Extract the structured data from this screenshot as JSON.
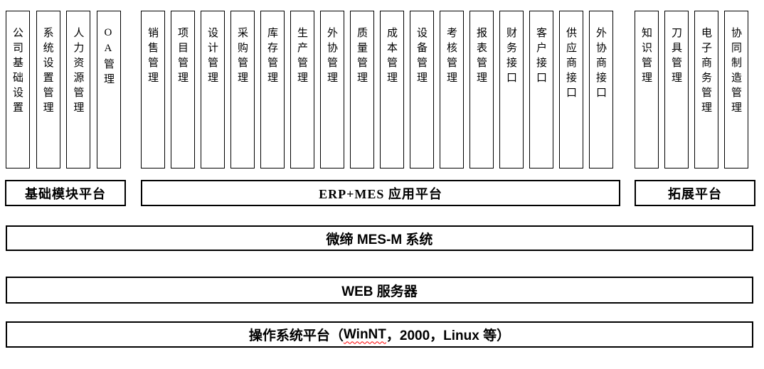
{
  "groups": [
    {
      "platform_label": "基础模块平台",
      "columns": [
        "公司基础设置",
        "系统设置管理",
        "人力资源管理",
        "OA管理"
      ]
    },
    {
      "platform_label": "ERP+MES 应用平台",
      "columns": [
        "销售管理",
        "项目管理",
        "设计管理",
        "采购管理",
        "库存管理",
        "生产管理",
        "外协管理",
        "质量管理",
        "成本管理",
        "设备管理",
        "考核管理",
        "报表管理",
        "财务接口",
        "客户接口",
        "供应商接口",
        "外协商接口"
      ]
    },
    {
      "platform_label": "拓展平台",
      "columns": [
        "知识管理",
        "刀具管理",
        "电子商务管理",
        "协同制造管理"
      ]
    }
  ],
  "layers": {
    "mes": "微缔 MES-M 系统",
    "web": "WEB 服务器",
    "os": {
      "prefix": "操作系统平台（",
      "underlined": "WinNT",
      "suffix": "，2000，Linux 等）"
    }
  },
  "colors": {
    "border": "#000000",
    "background": "#ffffff",
    "text": "#000000",
    "spellcheck_underline": "#ff0000"
  }
}
